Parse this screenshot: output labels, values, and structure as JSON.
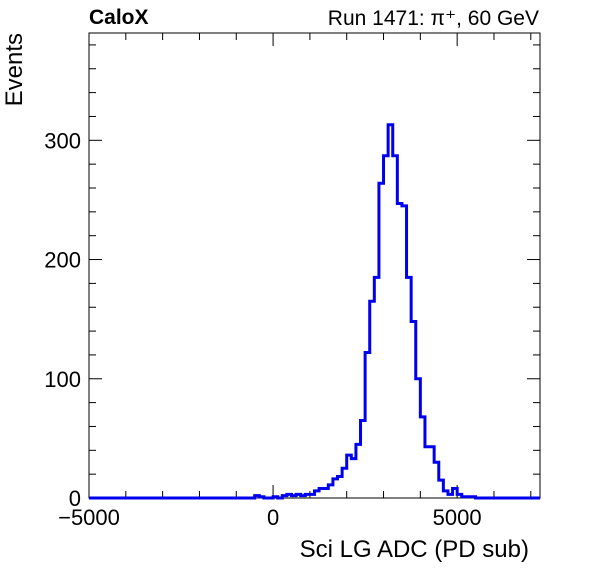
{
  "chart_data": {
    "type": "histogram",
    "experiment_label": "CaloX",
    "run_label": "Run 1471: π⁺, 60 GeV",
    "xlabel": "Sci LG ADC (PD sub)",
    "ylabel": "Events",
    "xlim": [
      -5000,
      7250
    ],
    "ylim": [
      0,
      390
    ],
    "x_ticks": [
      -5000,
      0,
      5000
    ],
    "x_tick_labels": [
      "−5000",
      "0",
      "5000"
    ],
    "y_ticks": [
      0,
      100,
      200,
      300
    ],
    "y_tick_labels": [
      "0",
      "100",
      "200",
      "300"
    ],
    "grid": false,
    "legend": "none",
    "line_color": "#0000ee",
    "series": [
      {
        "bin_width": 125,
        "bin_low_edges": [
          -500,
          -375,
          -250,
          0,
          250,
          375,
          500,
          625,
          750,
          875,
          1000,
          1125,
          1250,
          1375,
          1500,
          1625,
          1750,
          1875,
          2000,
          2125,
          2250,
          2375,
          2500,
          2625,
          2750,
          2875,
          3000,
          3125,
          3250,
          3375,
          3500,
          3625,
          3750,
          3875,
          4000,
          4125,
          4250,
          4375,
          4500,
          4625,
          4750,
          4875,
          5000,
          5125,
          5250,
          5375,
          5500
        ],
        "counts": [
          2,
          1,
          0,
          1,
          2,
          3,
          2,
          3,
          2,
          3,
          3,
          6,
          8,
          8,
          11,
          16,
          18,
          25,
          36,
          33,
          45,
          65,
          122,
          165,
          185,
          264,
          287,
          313,
          287,
          247,
          245,
          185,
          148,
          100,
          68,
          43,
          43,
          30,
          15,
          6,
          3,
          8,
          3,
          1,
          1,
          1,
          0
        ]
      }
    ]
  }
}
